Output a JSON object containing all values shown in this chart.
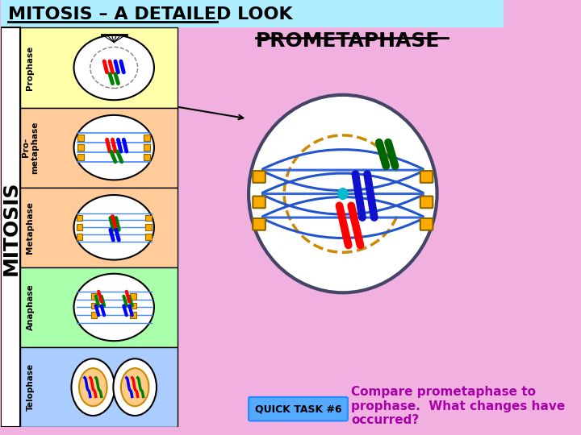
{
  "title": "MITOSIS – A DETAILED LOOK",
  "title_bg": "#aeeeff",
  "main_bg": "#f0b0e0",
  "mitosis_label": "MITOSIS",
  "prometaphase_label": "PROMETAPHASE",
  "quick_task_label": "QUICK TASK #6",
  "quick_task_bg": "#55aaff",
  "quick_task_text": "Compare prometaphase to\nprophase.  What changes have\noccurred?",
  "quick_task_color": "#aa00aa",
  "phases": [
    "Prophase",
    "Pro-\nmetaphase",
    "Metaphase",
    "Anaphase",
    "Telophase"
  ],
  "phase_bg_colors": [
    "#ffffaa",
    "#ffcc99",
    "#ffcc99",
    "#aaffaa",
    "#aaccff"
  ]
}
